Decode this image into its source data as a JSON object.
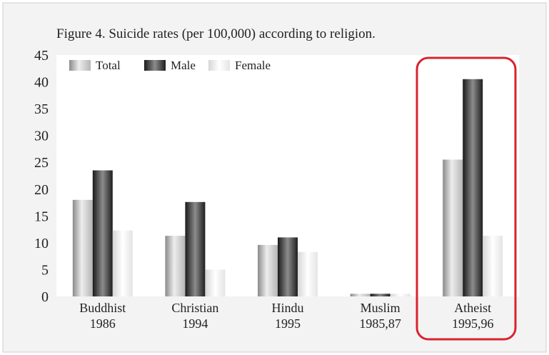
{
  "chart_data": {
    "type": "bar",
    "title": "Figure 4. Suicide rates (per 100,000) according to religion.",
    "categories": [
      {
        "line1": "Buddhist",
        "line2": "1986"
      },
      {
        "line1": "Christian",
        "line2": "1994"
      },
      {
        "line1": "Hindu",
        "line2": "1995"
      },
      {
        "line1": "Muslim",
        "line2": "1985,87"
      },
      {
        "line1": "Atheist",
        "line2": "1995,96"
      }
    ],
    "series": [
      {
        "name": "Total",
        "values": [
          18,
          11.3,
          9.6,
          0.5,
          25.5
        ]
      },
      {
        "name": "Male",
        "values": [
          23.5,
          17.6,
          11,
          0.5,
          40.5
        ]
      },
      {
        "name": "Female",
        "values": [
          12.3,
          5,
          8.3,
          0.5,
          11.3
        ]
      }
    ],
    "ylim": [
      0,
      45
    ],
    "yticks": [
      0,
      5,
      10,
      15,
      20,
      25,
      30,
      35,
      40,
      45
    ],
    "legend_position": "top-left",
    "grid": false,
    "highlight_category_index": 4,
    "colors": {
      "background": "#f3f3f3",
      "plot_background": "#ffffff",
      "frame": "#cfcfcf",
      "highlight": "#d9232e",
      "text": "#222222"
    }
  }
}
